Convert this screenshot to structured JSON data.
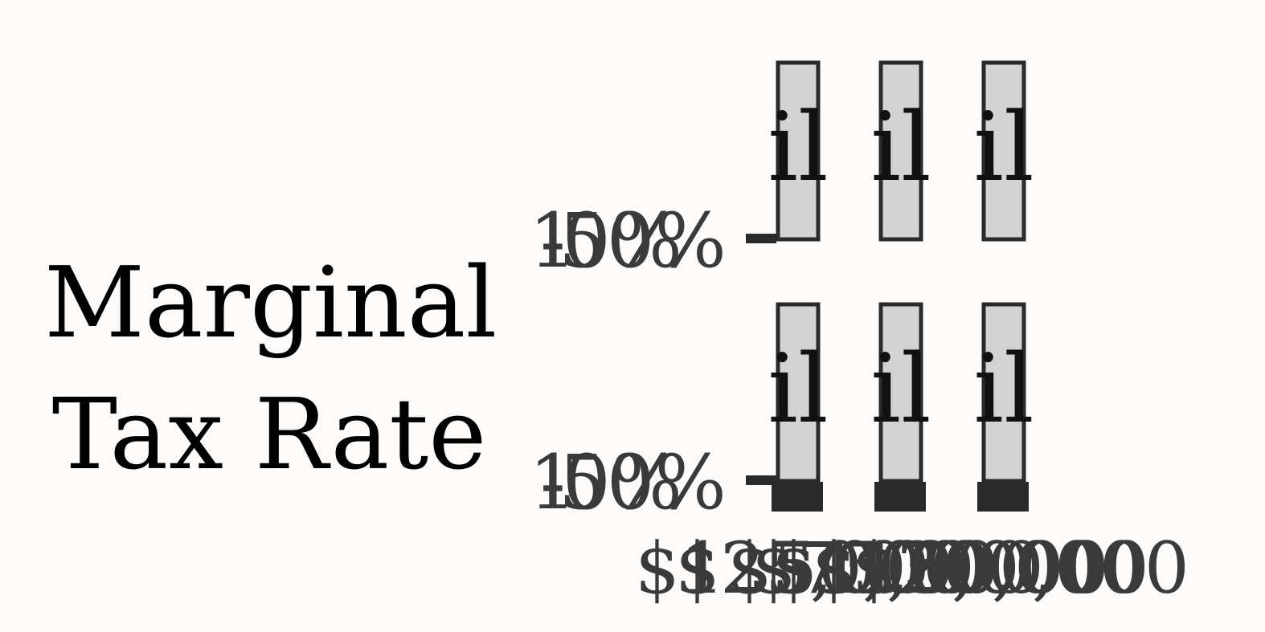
{
  "chart_data": {
    "type": "bar",
    "ylabel_lines": [
      "Marginal",
      "Tax Rate"
    ],
    "panels": [
      {
        "y_ticks": [
          "1",
          "-",
          "50%",
          "0%"
        ],
        "categories": [
          "",
          "",
          ""
        ],
        "values": [
          1,
          1,
          1
        ],
        "bar_labels": [
          "il",
          "il",
          "il"
        ]
      },
      {
        "y_ticks": [
          "1",
          "-",
          "50%",
          "0%"
        ],
        "categories": [
          "",
          "",
          ""
        ],
        "values": [
          1,
          1,
          1
        ],
        "bar_labels": [
          "il",
          "il",
          "il"
        ]
      }
    ],
    "x_tick_labels": [
      "$1",
      "$25,000",
      "$50,000",
      "$75,000",
      "$100,000",
      "$150,000",
      "$200,000"
    ],
    "colors": {
      "bar_fill": "#d3d3d3",
      "bar_stroke": "#2a2a2a",
      "text": "#3a3a3a",
      "background": "#fdfbfa"
    }
  }
}
